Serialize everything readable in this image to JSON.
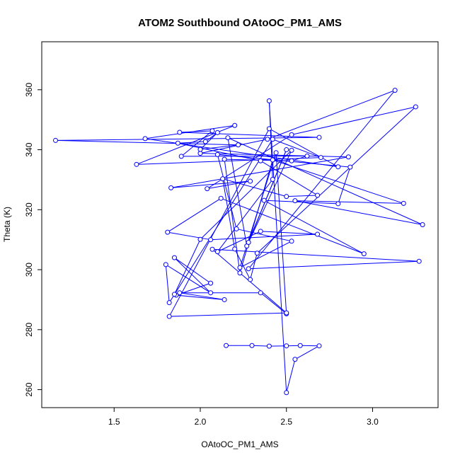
{
  "chart_data": {
    "type": "scatter",
    "title": "ATOM2 Southbound OAtoOC_PM1_AMS",
    "xlabel": "OAtoOC_PM1_AMS",
    "ylabel": "Theta (K)",
    "xlim": [
      1.08,
      3.38
    ],
    "ylim": [
      254,
      376
    ],
    "xticks": [
      1.5,
      2.0,
      2.5,
      3.0
    ],
    "xtick_labels": [
      "1.5",
      "2.0",
      "2.5",
      "3.0"
    ],
    "yticks": [
      260,
      280,
      300,
      320,
      340,
      360
    ],
    "ytick_labels": [
      "260",
      "280",
      "300",
      "320",
      "340",
      "360"
    ],
    "grid": false,
    "legend": "none",
    "colors": {
      "series": "#0000ff",
      "axis": "#000000"
    },
    "series": [
      {
        "points": [
          {
            "x": 2.15,
            "y": 274.7
          },
          {
            "x": 2.3,
            "y": 274.7
          },
          {
            "x": 2.4,
            "y": 274.5
          },
          {
            "x": 2.5,
            "y": 274.6
          },
          {
            "x": 2.58,
            "y": 274.7
          },
          {
            "x": 2.69,
            "y": 274.6
          },
          {
            "x": 2.55,
            "y": 270.1
          },
          {
            "x": 2.5,
            "y": 259.0
          },
          {
            "x": 2.4,
            "y": 356.3
          },
          {
            "x": 2.42,
            "y": 330.1
          },
          {
            "x": 2.1,
            "y": 306.0
          },
          {
            "x": 2.35,
            "y": 312.8
          },
          {
            "x": 2.68,
            "y": 311.8
          },
          {
            "x": 2.06,
            "y": 310.0
          },
          {
            "x": 1.81,
            "y": 312.5
          },
          {
            "x": 2.12,
            "y": 323.8
          },
          {
            "x": 2.95,
            "y": 305.3
          },
          {
            "x": 2.37,
            "y": 323.1
          },
          {
            "x": 2.8,
            "y": 322.0
          },
          {
            "x": 2.87,
            "y": 334.2
          },
          {
            "x": 2.1,
            "y": 338.4
          },
          {
            "x": 2.21,
            "y": 313.6
          },
          {
            "x": 2.53,
            "y": 309.5
          },
          {
            "x": 2.23,
            "y": 300.7
          },
          {
            "x": 2.44,
            "y": 339.0
          },
          {
            "x": 2.5,
            "y": 285.3
          },
          {
            "x": 2.35,
            "y": 292.3
          },
          {
            "x": 1.88,
            "y": 292.3
          },
          {
            "x": 2.14,
            "y": 290.0
          },
          {
            "x": 1.86,
            "y": 291.5
          },
          {
            "x": 2.06,
            "y": 295.5
          },
          {
            "x": 1.85,
            "y": 304.0
          },
          {
            "x": 2.06,
            "y": 292.3
          },
          {
            "x": 1.8,
            "y": 301.7
          },
          {
            "x": 1.82,
            "y": 289.0
          },
          {
            "x": 2.42,
            "y": 343.5
          },
          {
            "x": 2.7,
            "y": 337.4
          },
          {
            "x": 1.63,
            "y": 335.1
          },
          {
            "x": 2.2,
            "y": 348.1
          },
          {
            "x": 1.68,
            "y": 343.7
          },
          {
            "x": 2.8,
            "y": 334.3
          },
          {
            "x": 2.4,
            "y": 347.0
          },
          {
            "x": 1.82,
            "y": 284.4
          },
          {
            "x": 2.5,
            "y": 285.6
          },
          {
            "x": 2.07,
            "y": 306.8
          },
          {
            "x": 3.27,
            "y": 302.8
          },
          {
            "x": 2.28,
            "y": 300.3
          },
          {
            "x": 3.13,
            "y": 359.8
          },
          {
            "x": 2.39,
            "y": 343.5
          },
          {
            "x": 2.0,
            "y": 338.8
          },
          {
            "x": 2.86,
            "y": 337.6
          },
          {
            "x": 1.83,
            "y": 327.3
          },
          {
            "x": 2.29,
            "y": 329.5
          },
          {
            "x": 2.04,
            "y": 327.0
          },
          {
            "x": 2.53,
            "y": 345.0
          },
          {
            "x": 3.25,
            "y": 354.3
          },
          {
            "x": 2.33,
            "y": 305.5
          },
          {
            "x": 2.29,
            "y": 296.7
          },
          {
            "x": 2.2,
            "y": 306.9
          },
          {
            "x": 2.13,
            "y": 330.3
          },
          {
            "x": 2.5,
            "y": 324.4
          },
          {
            "x": 2.68,
            "y": 324.8
          },
          {
            "x": 2.35,
            "y": 336.3
          },
          {
            "x": 1.87,
            "y": 342.2
          },
          {
            "x": 2.03,
            "y": 342.7
          },
          {
            "x": 2.1,
            "y": 345.7
          },
          {
            "x": 2.0,
            "y": 340.1
          },
          {
            "x": 2.22,
            "y": 341.6
          },
          {
            "x": 1.16,
            "y": 343.1
          },
          {
            "x": 2.69,
            "y": 344.1
          },
          {
            "x": 1.88,
            "y": 345.8
          },
          {
            "x": 2.07,
            "y": 346.3
          },
          {
            "x": 1.89,
            "y": 337.8
          },
          {
            "x": 2.62,
            "y": 337.9
          },
          {
            "x": 2.53,
            "y": 336.3
          },
          {
            "x": 2.14,
            "y": 336.8
          },
          {
            "x": 2.23,
            "y": 298.9
          },
          {
            "x": 2.42,
            "y": 336.6
          },
          {
            "x": 3.18,
            "y": 322.1
          },
          {
            "x": 2.55,
            "y": 323.0
          },
          {
            "x": 3.29,
            "y": 315.0
          },
          {
            "x": 2.16,
            "y": 344.0
          },
          {
            "x": 2.27,
            "y": 307.9
          },
          {
            "x": 2.5,
            "y": 340.0
          },
          {
            "x": 2.28,
            "y": 309.1
          },
          {
            "x": 2.53,
            "y": 339.8
          },
          {
            "x": 2.0,
            "y": 310.1
          },
          {
            "x": 1.85,
            "y": 291.8
          }
        ]
      }
    ]
  }
}
